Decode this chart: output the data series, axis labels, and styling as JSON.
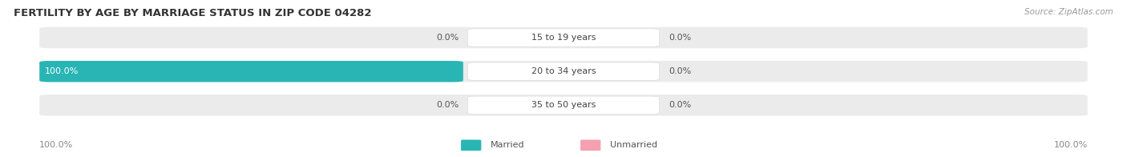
{
  "title": "FERTILITY BY AGE BY MARRIAGE STATUS IN ZIP CODE 04282",
  "source": "Source: ZipAtlas.com",
  "rows": [
    {
      "label": "15 to 19 years",
      "married": 0.0,
      "unmarried": 0.0
    },
    {
      "label": "20 to 34 years",
      "married": 100.0,
      "unmarried": 0.0
    },
    {
      "label": "35 to 50 years",
      "married": 0.0,
      "unmarried": 0.0
    }
  ],
  "married_color": "#2ab5b5",
  "unmarried_color": "#f5a0b0",
  "bar_bg_color": "#ebebeb",
  "label_pill_color": "#ffffff",
  "title_color": "#333333",
  "source_color": "#999999",
  "value_label_color": "#555555",
  "axis_label_color": "#888888",
  "legend_label_color": "#555555",
  "axis_label_left": "100.0%",
  "axis_label_right": "100.0%",
  "legend_married": "Married",
  "legend_unmarried": "Unmarried",
  "max_val": 100.0,
  "fig_width": 14.06,
  "fig_height": 1.96,
  "dpi": 100,
  "title_fontsize": 9.5,
  "source_fontsize": 7.5,
  "bar_label_fontsize": 8,
  "axis_label_fontsize": 8,
  "legend_fontsize": 8
}
